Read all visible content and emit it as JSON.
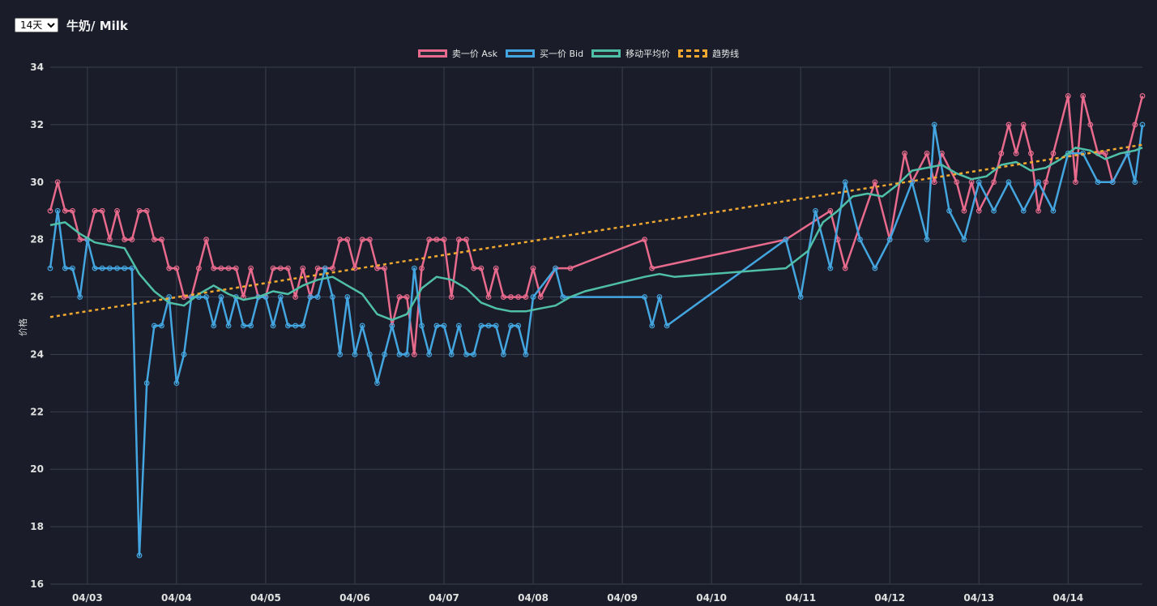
{
  "header": {
    "range_options": [
      "14天"
    ],
    "range_selected": "14天",
    "title": "牛奶/ Milk"
  },
  "legend": {
    "items": [
      {
        "label": "卖一价 Ask",
        "color": "#e86a8c",
        "dashed": false
      },
      {
        "label": "买一价 Bid",
        "color": "#44a6e0",
        "dashed": false
      },
      {
        "label": "移动平均价",
        "color": "#4fbfa8",
        "dashed": false
      },
      {
        "label": "趋势线",
        "color": "#f0a830",
        "dashed": true
      }
    ]
  },
  "chart_data": {
    "type": "line",
    "ylabel": "价格",
    "xlabel": "",
    "ylim": [
      16,
      34
    ],
    "yticks": [
      16,
      18,
      20,
      22,
      24,
      26,
      28,
      30,
      32,
      34
    ],
    "xlim_days": [
      "04/02 14:00",
      "04/14 20:00"
    ],
    "xticks": [
      "04/03",
      "04/04",
      "04/05",
      "04/06",
      "04/07",
      "04/08",
      "04/09",
      "04/10",
      "04/11",
      "04/12",
      "04/13",
      "04/14"
    ],
    "grid": true,
    "legend_position": "top",
    "series": [
      {
        "name": "卖一价 Ask",
        "color": "#e86a8c",
        "points": [
          [
            "04/02 14:00",
            29
          ],
          [
            "04/02 16:00",
            30
          ],
          [
            "04/02 18:00",
            29
          ],
          [
            "04/02 20:00",
            29
          ],
          [
            "04/02 22:00",
            28
          ],
          [
            "04/03 00:00",
            28
          ],
          [
            "04/03 02:00",
            29
          ],
          [
            "04/03 04:00",
            29
          ],
          [
            "04/03 06:00",
            28
          ],
          [
            "04/03 08:00",
            29
          ],
          [
            "04/03 10:00",
            28
          ],
          [
            "04/03 12:00",
            28
          ],
          [
            "04/03 14:00",
            29
          ],
          [
            "04/03 16:00",
            29
          ],
          [
            "04/03 18:00",
            28
          ],
          [
            "04/03 20:00",
            28
          ],
          [
            "04/03 22:00",
            27
          ],
          [
            "04/04 00:00",
            27
          ],
          [
            "04/04 02:00",
            26
          ],
          [
            "04/04 04:00",
            26
          ],
          [
            "04/04 06:00",
            27
          ],
          [
            "04/04 08:00",
            28
          ],
          [
            "04/04 10:00",
            27
          ],
          [
            "04/04 12:00",
            27
          ],
          [
            "04/04 14:00",
            27
          ],
          [
            "04/04 16:00",
            27
          ],
          [
            "04/04 18:00",
            26
          ],
          [
            "04/04 20:00",
            27
          ],
          [
            "04/04 22:00",
            26
          ],
          [
            "04/05 00:00",
            26
          ],
          [
            "04/05 02:00",
            27
          ],
          [
            "04/05 04:00",
            27
          ],
          [
            "04/05 06:00",
            27
          ],
          [
            "04/05 08:00",
            26
          ],
          [
            "04/05 10:00",
            27
          ],
          [
            "04/05 12:00",
            26
          ],
          [
            "04/05 14:00",
            27
          ],
          [
            "04/05 16:00",
            27
          ],
          [
            "04/05 18:00",
            27
          ],
          [
            "04/05 20:00",
            28
          ],
          [
            "04/05 22:00",
            28
          ],
          [
            "04/06 00:00",
            27
          ],
          [
            "04/06 02:00",
            28
          ],
          [
            "04/06 04:00",
            28
          ],
          [
            "04/06 06:00",
            27
          ],
          [
            "04/06 08:00",
            27
          ],
          [
            "04/06 10:00",
            25
          ],
          [
            "04/06 12:00",
            26
          ],
          [
            "04/06 14:00",
            26
          ],
          [
            "04/06 16:00",
            24
          ],
          [
            "04/06 18:00",
            27
          ],
          [
            "04/06 20:00",
            28
          ],
          [
            "04/06 22:00",
            28
          ],
          [
            "04/07 00:00",
            28
          ],
          [
            "04/07 02:00",
            26
          ],
          [
            "04/07 04:00",
            28
          ],
          [
            "04/07 06:00",
            28
          ],
          [
            "04/07 08:00",
            27
          ],
          [
            "04/07 10:00",
            27
          ],
          [
            "04/07 12:00",
            26
          ],
          [
            "04/07 14:00",
            27
          ],
          [
            "04/07 16:00",
            26
          ],
          [
            "04/07 18:00",
            26
          ],
          [
            "04/07 20:00",
            26
          ],
          [
            "04/07 22:00",
            26
          ],
          [
            "04/08 00:00",
            27
          ],
          [
            "04/08 02:00",
            26
          ],
          [
            "04/08 06:00",
            27
          ],
          [
            "04/08 10:00",
            27
          ],
          [
            "04/09 06:00",
            28
          ],
          [
            "04/09 08:00",
            27
          ],
          [
            "04/10 20:00",
            28
          ],
          [
            "04/11 08:00",
            29
          ],
          [
            "04/11 10:00",
            28
          ],
          [
            "04/11 12:00",
            27
          ],
          [
            "04/11 20:00",
            30
          ],
          [
            "04/12 00:00",
            28
          ],
          [
            "04/12 04:00",
            31
          ],
          [
            "04/12 06:00",
            30
          ],
          [
            "04/12 10:00",
            31
          ],
          [
            "04/12 12:00",
            30
          ],
          [
            "04/12 14:00",
            31
          ],
          [
            "04/12 18:00",
            30
          ],
          [
            "04/12 20:00",
            29
          ],
          [
            "04/12 22:00",
            30
          ],
          [
            "04/13 00:00",
            29
          ],
          [
            "04/13 04:00",
            30
          ],
          [
            "04/13 06:00",
            31
          ],
          [
            "04/13 08:00",
            32
          ],
          [
            "04/13 10:00",
            31
          ],
          [
            "04/13 12:00",
            32
          ],
          [
            "04/13 14:00",
            31
          ],
          [
            "04/13 16:00",
            29
          ],
          [
            "04/13 18:00",
            30
          ],
          [
            "04/13 20:00",
            31
          ],
          [
            "04/14 00:00",
            33
          ],
          [
            "04/14 02:00",
            30
          ],
          [
            "04/14 04:00",
            33
          ],
          [
            "04/14 06:00",
            32
          ],
          [
            "04/14 08:00",
            31
          ],
          [
            "04/14 10:00",
            31
          ],
          [
            "04/14 12:00",
            30
          ],
          [
            "04/14 16:00",
            31
          ],
          [
            "04/14 18:00",
            32
          ],
          [
            "04/14 20:00",
            33
          ]
        ]
      },
      {
        "name": "买一价 Bid",
        "color": "#44a6e0",
        "points": [
          [
            "04/02 14:00",
            27
          ],
          [
            "04/02 16:00",
            29
          ],
          [
            "04/02 18:00",
            27
          ],
          [
            "04/02 20:00",
            27
          ],
          [
            "04/02 22:00",
            26
          ],
          [
            "04/03 00:00",
            28
          ],
          [
            "04/03 02:00",
            27
          ],
          [
            "04/03 04:00",
            27
          ],
          [
            "04/03 06:00",
            27
          ],
          [
            "04/03 08:00",
            27
          ],
          [
            "04/03 10:00",
            27
          ],
          [
            "04/03 12:00",
            27
          ],
          [
            "04/03 14:00",
            17
          ],
          [
            "04/03 16:00",
            23
          ],
          [
            "04/03 18:00",
            25
          ],
          [
            "04/03 20:00",
            25
          ],
          [
            "04/03 22:00",
            26
          ],
          [
            "04/04 00:00",
            23
          ],
          [
            "04/04 02:00",
            24
          ],
          [
            "04/04 04:00",
            26
          ],
          [
            "04/04 06:00",
            26
          ],
          [
            "04/04 08:00",
            26
          ],
          [
            "04/04 10:00",
            25
          ],
          [
            "04/04 12:00",
            26
          ],
          [
            "04/04 14:00",
            25
          ],
          [
            "04/04 16:00",
            26
          ],
          [
            "04/04 18:00",
            25
          ],
          [
            "04/04 20:00",
            25
          ],
          [
            "04/04 22:00",
            26
          ],
          [
            "04/05 00:00",
            26
          ],
          [
            "04/05 02:00",
            25
          ],
          [
            "04/05 04:00",
            26
          ],
          [
            "04/05 06:00",
            25
          ],
          [
            "04/05 08:00",
            25
          ],
          [
            "04/05 10:00",
            25
          ],
          [
            "04/05 12:00",
            26
          ],
          [
            "04/05 14:00",
            26
          ],
          [
            "04/05 16:00",
            27
          ],
          [
            "04/05 18:00",
            26
          ],
          [
            "04/05 20:00",
            24
          ],
          [
            "04/05 22:00",
            26
          ],
          [
            "04/06 00:00",
            24
          ],
          [
            "04/06 02:00",
            25
          ],
          [
            "04/06 04:00",
            24
          ],
          [
            "04/06 06:00",
            23
          ],
          [
            "04/06 08:00",
            24
          ],
          [
            "04/06 10:00",
            25
          ],
          [
            "04/06 12:00",
            24
          ],
          [
            "04/06 14:00",
            24
          ],
          [
            "04/06 16:00",
            27
          ],
          [
            "04/06 18:00",
            25
          ],
          [
            "04/06 20:00",
            24
          ],
          [
            "04/06 22:00",
            25
          ],
          [
            "04/07 00:00",
            25
          ],
          [
            "04/07 02:00",
            24
          ],
          [
            "04/07 04:00",
            25
          ],
          [
            "04/07 06:00",
            24
          ],
          [
            "04/07 08:00",
            24
          ],
          [
            "04/07 10:00",
            25
          ],
          [
            "04/07 12:00",
            25
          ],
          [
            "04/07 14:00",
            25
          ],
          [
            "04/07 16:00",
            24
          ],
          [
            "04/07 18:00",
            25
          ],
          [
            "04/07 20:00",
            25
          ],
          [
            "04/07 22:00",
            24
          ],
          [
            "04/08 00:00",
            26
          ],
          [
            "04/08 06:00",
            27
          ],
          [
            "04/08 08:00",
            26
          ],
          [
            "04/09 06:00",
            26
          ],
          [
            "04/09 08:00",
            25
          ],
          [
            "04/09 10:00",
            26
          ],
          [
            "04/09 12:00",
            25
          ],
          [
            "04/10 20:00",
            28
          ],
          [
            "04/11 00:00",
            26
          ],
          [
            "04/11 04:00",
            29
          ],
          [
            "04/11 08:00",
            27
          ],
          [
            "04/11 12:00",
            30
          ],
          [
            "04/11 16:00",
            28
          ],
          [
            "04/11 20:00",
            27
          ],
          [
            "04/12 00:00",
            28
          ],
          [
            "04/12 06:00",
            30
          ],
          [
            "04/12 10:00",
            28
          ],
          [
            "04/12 12:00",
            32
          ],
          [
            "04/12 16:00",
            29
          ],
          [
            "04/12 20:00",
            28
          ],
          [
            "04/13 00:00",
            30
          ],
          [
            "04/13 04:00",
            29
          ],
          [
            "04/13 08:00",
            30
          ],
          [
            "04/13 12:00",
            29
          ],
          [
            "04/13 16:00",
            30
          ],
          [
            "04/13 20:00",
            29
          ],
          [
            "04/14 00:00",
            31
          ],
          [
            "04/14 04:00",
            31
          ],
          [
            "04/14 08:00",
            30
          ],
          [
            "04/14 12:00",
            30
          ],
          [
            "04/14 16:00",
            31
          ],
          [
            "04/14 18:00",
            30
          ],
          [
            "04/14 20:00",
            32
          ]
        ]
      },
      {
        "name": "移动平均价",
        "color": "#4fbfa8",
        "points": [
          [
            "04/02 14:00",
            28.5
          ],
          [
            "04/02 18:00",
            28.6
          ],
          [
            "04/02 22:00",
            28.2
          ],
          [
            "04/03 02:00",
            27.9
          ],
          [
            "04/03 06:00",
            27.8
          ],
          [
            "04/03 10:00",
            27.7
          ],
          [
            "04/03 14:00",
            26.8
          ],
          [
            "04/03 18:00",
            26.2
          ],
          [
            "04/03 22:00",
            25.8
          ],
          [
            "04/04 02:00",
            25.7
          ],
          [
            "04/04 06:00",
            26.1
          ],
          [
            "04/04 10:00",
            26.4
          ],
          [
            "04/04 14:00",
            26.1
          ],
          [
            "04/04 18:00",
            25.9
          ],
          [
            "04/04 22:00",
            26.0
          ],
          [
            "04/05 02:00",
            26.2
          ],
          [
            "04/05 06:00",
            26.1
          ],
          [
            "04/05 10:00",
            26.4
          ],
          [
            "04/05 14:00",
            26.6
          ],
          [
            "04/05 18:00",
            26.7
          ],
          [
            "04/05 22:00",
            26.4
          ],
          [
            "04/06 02:00",
            26.1
          ],
          [
            "04/06 06:00",
            25.4
          ],
          [
            "04/06 10:00",
            25.2
          ],
          [
            "04/06 14:00",
            25.4
          ],
          [
            "04/06 18:00",
            26.3
          ],
          [
            "04/06 22:00",
            26.7
          ],
          [
            "04/07 02:00",
            26.6
          ],
          [
            "04/07 06:00",
            26.3
          ],
          [
            "04/07 10:00",
            25.8
          ],
          [
            "04/07 14:00",
            25.6
          ],
          [
            "04/07 18:00",
            25.5
          ],
          [
            "04/07 22:00",
            25.5
          ],
          [
            "04/08 02:00",
            25.6
          ],
          [
            "04/08 06:00",
            25.7
          ],
          [
            "04/08 10:00",
            26.0
          ],
          [
            "04/08 14:00",
            26.2
          ],
          [
            "04/09 06:00",
            26.7
          ],
          [
            "04/09 10:00",
            26.8
          ],
          [
            "04/09 14:00",
            26.7
          ],
          [
            "04/10 20:00",
            27.0
          ],
          [
            "04/11 02:00",
            27.6
          ],
          [
            "04/11 06:00",
            28.6
          ],
          [
            "04/11 10:00",
            29.0
          ],
          [
            "04/11 14:00",
            29.5
          ],
          [
            "04/11 18:00",
            29.6
          ],
          [
            "04/11 22:00",
            29.5
          ],
          [
            "04/12 02:00",
            29.9
          ],
          [
            "04/12 06:00",
            30.4
          ],
          [
            "04/12 10:00",
            30.5
          ],
          [
            "04/12 14:00",
            30.6
          ],
          [
            "04/12 18:00",
            30.3
          ],
          [
            "04/12 22:00",
            30.1
          ],
          [
            "04/13 02:00",
            30.2
          ],
          [
            "04/13 06:00",
            30.6
          ],
          [
            "04/13 10:00",
            30.7
          ],
          [
            "04/13 14:00",
            30.4
          ],
          [
            "04/13 18:00",
            30.5
          ],
          [
            "04/13 22:00",
            30.8
          ],
          [
            "04/14 02:00",
            31.2
          ],
          [
            "04/14 06:00",
            31.1
          ],
          [
            "04/14 10:00",
            30.8
          ],
          [
            "04/14 14:00",
            31.0
          ],
          [
            "04/14 18:00",
            31.1
          ],
          [
            "04/14 20:00",
            31.2
          ]
        ]
      },
      {
        "name": "趋势线",
        "color": "#f0a830",
        "dashed": true,
        "points": [
          [
            "04/02 14:00",
            25.3
          ],
          [
            "04/14 20:00",
            31.3
          ]
        ]
      }
    ]
  }
}
